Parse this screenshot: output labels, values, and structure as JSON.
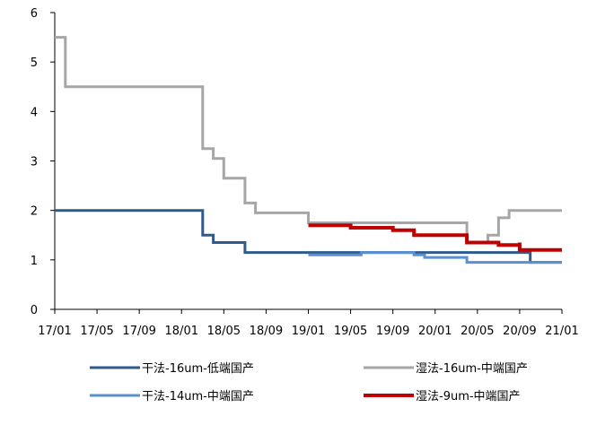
{
  "chart_data": {
    "type": "line",
    "title": "",
    "xlabel": "",
    "ylabel": "",
    "ylim": [
      0,
      6
    ],
    "yticks": [
      0,
      1,
      2,
      3,
      4,
      5,
      6
    ],
    "xlim": [
      "2017-01",
      "2021-01"
    ],
    "xtick_labels": [
      "17/01",
      "17/05",
      "17/09",
      "18/01",
      "18/05",
      "18/09",
      "19/01",
      "19/05",
      "19/09",
      "20/01",
      "20/05",
      "20/09",
      "21/01"
    ],
    "grid": false,
    "legend_position": "bottom",
    "series": [
      {
        "name": "干法-16um-低端国产",
        "color": "#2e5a8c",
        "width": 3,
        "points": [
          [
            "2017-01",
            2.0
          ],
          [
            "2018-03",
            2.0
          ],
          [
            "2018-03",
            1.5
          ],
          [
            "2018-04",
            1.5
          ],
          [
            "2018-04",
            1.35
          ],
          [
            "2018-07",
            1.35
          ],
          [
            "2018-07",
            1.15
          ],
          [
            "2020-10",
            1.15
          ],
          [
            "2020-10",
            0.95
          ],
          [
            "2021-01",
            0.95
          ]
        ]
      },
      {
        "name": "湿法-16um-中端国产",
        "color": "#a6a6a6",
        "width": 3,
        "points": [
          [
            "2017-01",
            5.5
          ],
          [
            "2017-02",
            5.5
          ],
          [
            "2017-02",
            4.5
          ],
          [
            "2018-03",
            4.5
          ],
          [
            "2018-03",
            3.25
          ],
          [
            "2018-04",
            3.25
          ],
          [
            "2018-04",
            3.05
          ],
          [
            "2018-05",
            3.05
          ],
          [
            "2018-05",
            2.65
          ],
          [
            "2018-07",
            2.65
          ],
          [
            "2018-07",
            2.15
          ],
          [
            "2018-08",
            2.15
          ],
          [
            "2018-08",
            1.95
          ],
          [
            "2019-01",
            1.95
          ],
          [
            "2019-01",
            1.75
          ],
          [
            "2020-04",
            1.75
          ],
          [
            "2020-04",
            1.35
          ],
          [
            "2020-06",
            1.35
          ],
          [
            "2020-06",
            1.5
          ],
          [
            "2020-07",
            1.5
          ],
          [
            "2020-07",
            1.85
          ],
          [
            "2020-08",
            1.85
          ],
          [
            "2020-08",
            2.0
          ],
          [
            "2021-01",
            2.0
          ]
        ]
      },
      {
        "name": "干法-14um-中端国产",
        "color": "#5b8fcf",
        "width": 3,
        "points": [
          [
            "2019-01",
            1.1
          ],
          [
            "2019-06",
            1.1
          ],
          [
            "2019-06",
            1.15
          ],
          [
            "2019-11",
            1.15
          ],
          [
            "2019-11",
            1.1
          ],
          [
            "2019-12",
            1.1
          ],
          [
            "2019-12",
            1.05
          ],
          [
            "2020-04",
            1.05
          ],
          [
            "2020-04",
            0.95
          ],
          [
            "2021-01",
            0.95
          ]
        ]
      },
      {
        "name": "湿法-9um-中端国产",
        "color": "#c00000",
        "width": 4,
        "points": [
          [
            "2019-01",
            1.7
          ],
          [
            "2019-05",
            1.7
          ],
          [
            "2019-05",
            1.65
          ],
          [
            "2019-09",
            1.65
          ],
          [
            "2019-09",
            1.6
          ],
          [
            "2019-11",
            1.6
          ],
          [
            "2019-11",
            1.5
          ],
          [
            "2020-04",
            1.5
          ],
          [
            "2020-04",
            1.35
          ],
          [
            "2020-07",
            1.35
          ],
          [
            "2020-07",
            1.3
          ],
          [
            "2020-09",
            1.3
          ],
          [
            "2020-09",
            1.35
          ],
          [
            "2020-09",
            1.2
          ],
          [
            "2021-01",
            1.2
          ]
        ]
      }
    ]
  }
}
